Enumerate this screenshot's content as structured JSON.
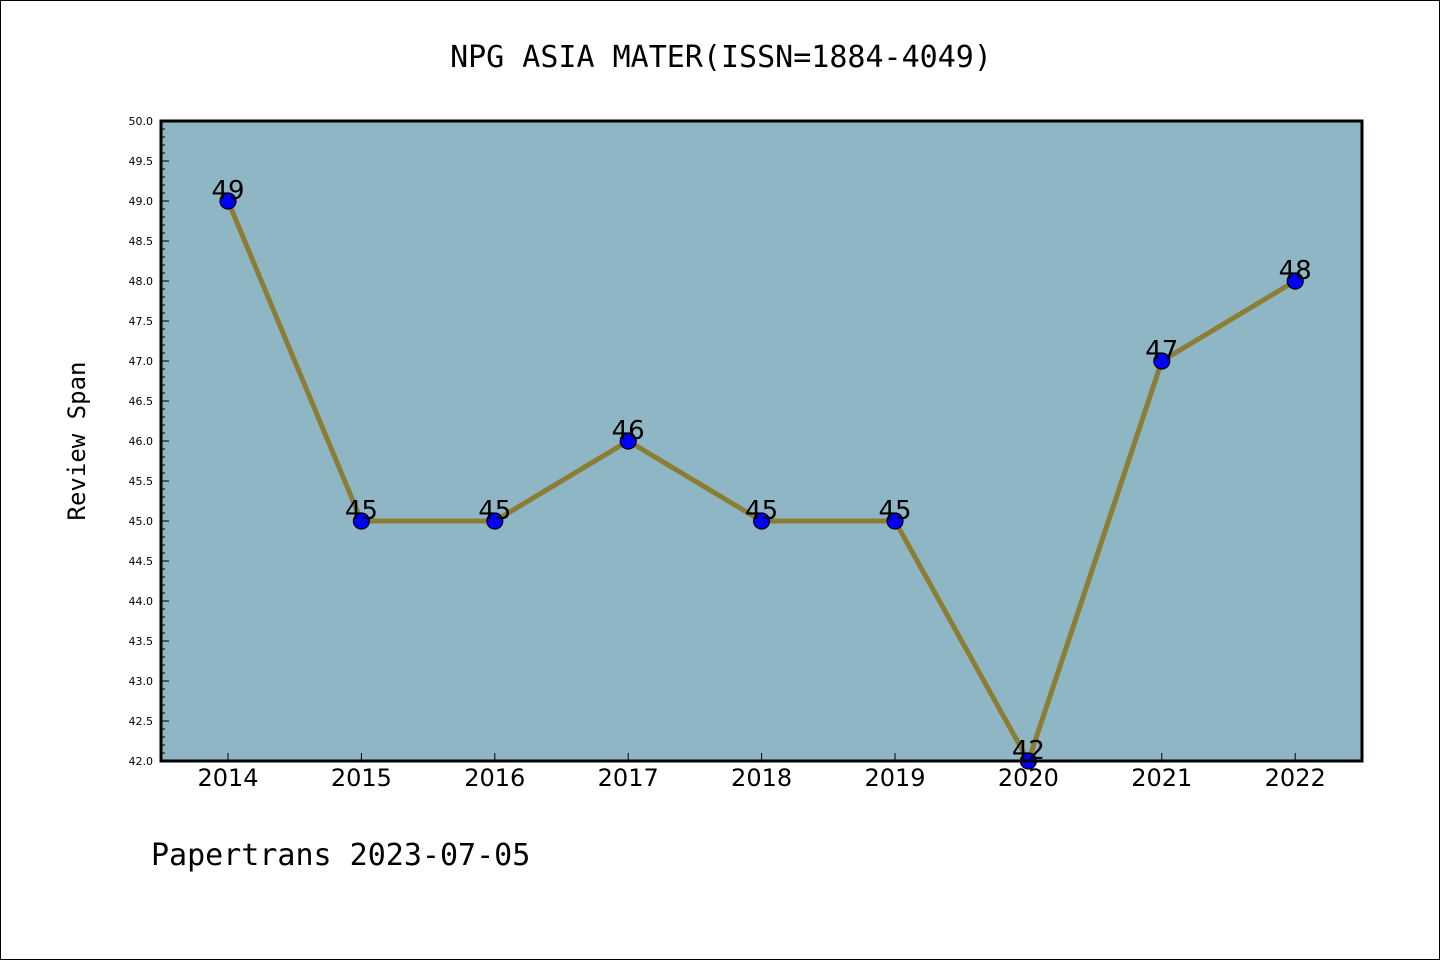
{
  "chart_data": {
    "type": "line",
    "title": "NPG ASIA MATER(ISSN=1884-4049)",
    "xlabel": "",
    "ylabel": "Review Span",
    "categories": [
      "2014",
      "2015",
      "2016",
      "2017",
      "2018",
      "2019",
      "2020",
      "2021",
      "2022"
    ],
    "series": [
      {
        "values": [
          49,
          45,
          45,
          46,
          45,
          45,
          42,
          47,
          48
        ]
      }
    ],
    "data_labels": [
      "49",
      "45",
      "45",
      "46",
      "45",
      "45",
      "42",
      "47",
      "48"
    ],
    "ylim": [
      42.0,
      50.0
    ],
    "yticks": [
      "42.0",
      "42.5",
      "43.0",
      "43.5",
      "44.0",
      "44.5",
      "45.0",
      "45.5",
      "46.0",
      "46.5",
      "47.0",
      "47.5",
      "48.0",
      "48.5",
      "49.0",
      "49.5",
      "50.0"
    ],
    "grid": false,
    "colors": {
      "plot_background": "#8fb6c4",
      "line": "#8c7d35",
      "marker": "#0000ff"
    }
  },
  "footer": "Papertrans 2023-07-05"
}
